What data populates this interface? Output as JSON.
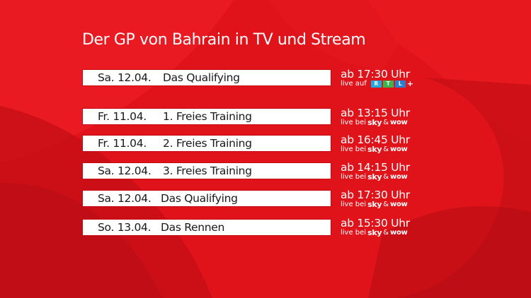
{
  "title": "Der GP von Bahrain in TV und Stream",
  "featured": {
    "date": "Sa. 12.04.",
    "event": "Das Qualifying",
    "time": "ab 17:30 Uhr",
    "broadcast_prefix": "live auf",
    "rtl_letters": [
      "R",
      "T",
      "L"
    ],
    "rtl_plus": "+"
  },
  "schedule": [
    {
      "date": "Fr.  11.04.",
      "event": "1. Freies Training",
      "time": "ab 13:15 Uhr",
      "broadcast_prefix": "live bei",
      "sky": "sky",
      "amp": "&",
      "wow": "wow"
    },
    {
      "date": "Fr.  11.04.",
      "event": "2. Freies Training",
      "time": "ab 16:45 Uhr",
      "broadcast_prefix": "live bei",
      "sky": "sky",
      "amp": "&",
      "wow": "wow"
    },
    {
      "date": "Sa. 12.04.",
      "event": "3. Freies Training",
      "time": "ab 14:15 Uhr",
      "broadcast_prefix": "live bei",
      "sky": "sky",
      "amp": "&",
      "wow": "wow"
    },
    {
      "date": "Sa. 12.04.",
      "event": "Das Qualifying",
      "time": "ab 17:30 Uhr",
      "broadcast_prefix": "live bei",
      "sky": "sky",
      "amp": "&",
      "wow": "wow"
    },
    {
      "date": "So. 13.04.",
      "event": "Das Rennen",
      "time": "ab 15:30 Uhr",
      "broadcast_prefix": "live bei",
      "sky": "sky",
      "amp": "&",
      "wow": "wow"
    }
  ],
  "colors": {
    "background": "#e0131a",
    "rtl_r": "#1fa9e0",
    "rtl_t": "#3ab54a",
    "rtl_l": "#2b7fd0"
  }
}
